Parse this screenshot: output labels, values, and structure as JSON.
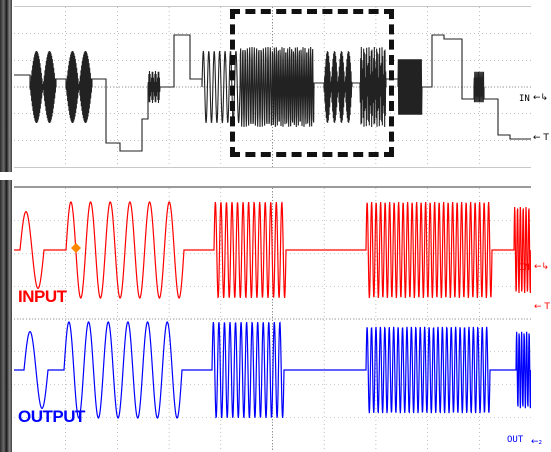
{
  "top": {
    "channel_marker": "IN",
    "trigger_marker": "← T",
    "ch_arrow": "←↳"
  },
  "bottom": {
    "input_label": "INPUT",
    "output_label": "OUTPUT",
    "input_marker": "IN",
    "output_marker": "OUT",
    "trigger_marker": "← T",
    "ch1_arrow": "←↳",
    "ch2_arrow": "←₂"
  },
  "colors": {
    "input_trace": "#ff0000",
    "output_trace": "#0000ff",
    "top_trace": "#222222",
    "grid": "#9a9a9a",
    "cursor": "#ff8800"
  }
}
